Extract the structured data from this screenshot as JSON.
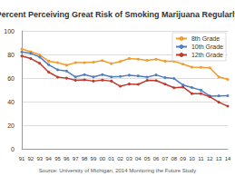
{
  "chart_data": {
    "type": "line",
    "title": "Percent Perceiving Great Risk of Smoking Marijuana Regularly",
    "annotations": [
      "Source: University of Michigan, 2014 Monitoring the Future Study"
    ],
    "categories": [
      "91",
      "92",
      "93",
      "94",
      "95",
      "96",
      "97",
      "98",
      "99",
      "00",
      "01",
      "02",
      "03",
      "04",
      "05",
      "06",
      "07",
      "08",
      "09",
      "10",
      "11",
      "12",
      "13",
      "14"
    ],
    "series": [
      {
        "name": "8th Grade",
        "color": "#f39a2b",
        "marker": "circle",
        "values": [
          84.6,
          82.3,
          79.6,
          74.3,
          73.0,
          70.9,
          73.0,
          73.0,
          73.5,
          74.8,
          72.2,
          74.0,
          76.6,
          76.0,
          75.0,
          76.0,
          74.3,
          74.3,
          71.7,
          69.2,
          69.0,
          68.6,
          61.0,
          58.9
        ]
      },
      {
        "name": "10th Grade",
        "color": "#4f7fc0",
        "marker": "circle",
        "values": [
          82.1,
          80.9,
          77.8,
          71.3,
          67.0,
          65.9,
          60.9,
          62.9,
          60.9,
          62.9,
          60.9,
          61.4,
          62.4,
          61.8,
          60.8,
          62.6,
          60.3,
          59.6,
          54.1,
          51.9,
          49.7,
          44.7,
          44.9,
          45.0
        ]
      },
      {
        "name": "12th Grade",
        "color": "#c0392b",
        "marker": "circle",
        "values": [
          78.6,
          76.5,
          72.5,
          65.0,
          60.8,
          59.9,
          58.1,
          58.5,
          57.4,
          58.3,
          57.4,
          53.0,
          54.9,
          54.6,
          58.0,
          57.9,
          54.8,
          51.7,
          52.4,
          46.8,
          46.8,
          44.1,
          39.5,
          36.1
        ]
      }
    ],
    "ylim": [
      0,
      100
    ],
    "yticks": [
      0,
      20,
      40,
      60,
      80,
      100
    ],
    "grid": true,
    "legend": "upper right"
  }
}
